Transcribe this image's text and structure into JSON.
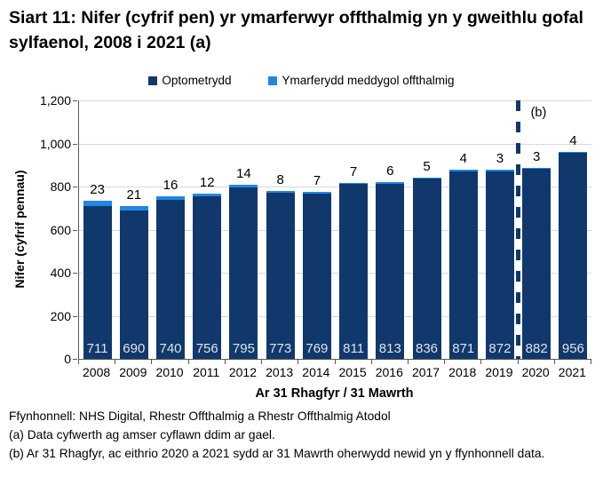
{
  "title": "Siart 11: Nifer (cyfrif pen) yr ymarferwyr offthalmig yn y gweithlu gofal sylfaenol, 2008 i 2021 (a)",
  "legend": {
    "items": [
      {
        "label": "Optometrydd",
        "color": "#11386c"
      },
      {
        "label": "Ymarferydd meddygol offthalmig",
        "color": "#1f87e8"
      }
    ]
  },
  "chart_data": {
    "type": "bar",
    "stacked": true,
    "categories": [
      "2008",
      "2009",
      "2010",
      "2011",
      "2012",
      "2013",
      "2014",
      "2015",
      "2016",
      "2017",
      "2018",
      "2019",
      "2020",
      "2021"
    ],
    "series": [
      {
        "name": "Optometrydd",
        "color": "#11386c",
        "values": [
          711,
          690,
          740,
          756,
          795,
          773,
          769,
          811,
          813,
          836,
          871,
          872,
          882,
          956
        ]
      },
      {
        "name": "Ymarferydd meddygol offthalmig",
        "color": "#1f87e8",
        "values": [
          23,
          21,
          16,
          12,
          14,
          8,
          7,
          7,
          6,
          5,
          4,
          3,
          3,
          4
        ]
      }
    ],
    "xlabel": "Ar 31 Rhagfyr / 31 Mawrth",
    "ylabel": "Nifer (cyfrif pennau)",
    "ylim": [
      0,
      1200
    ],
    "yticks": [
      0,
      200,
      400,
      600,
      800,
      1000,
      1200
    ],
    "ytick_labels": [
      "0",
      "200",
      "400",
      "600",
      "800",
      "1,000",
      "1,200"
    ],
    "grid": true,
    "legend_position": "top",
    "annotation": {
      "label": "(b)",
      "dashed_line_after_category": "2019",
      "dashed_line_color": "#11386c"
    },
    "colors": {
      "axis": "#595959",
      "gridline": "#d9d9d9",
      "bar_inside_label": "#dde4ec"
    }
  },
  "footnotes": [
    "Ffynhonnell: NHS Digital, Rhestr Offthalmig a Rhestr Offthalmig Atodol",
    "(a) Data cyfwerth ag amser cyflawn ddim ar gael.",
    "(b) Ar 31 Rhagfyr, ac eithrio 2020 a 2021 sydd ar 31 Mawrth oherwydd newid yn y ffynhonnell data."
  ]
}
